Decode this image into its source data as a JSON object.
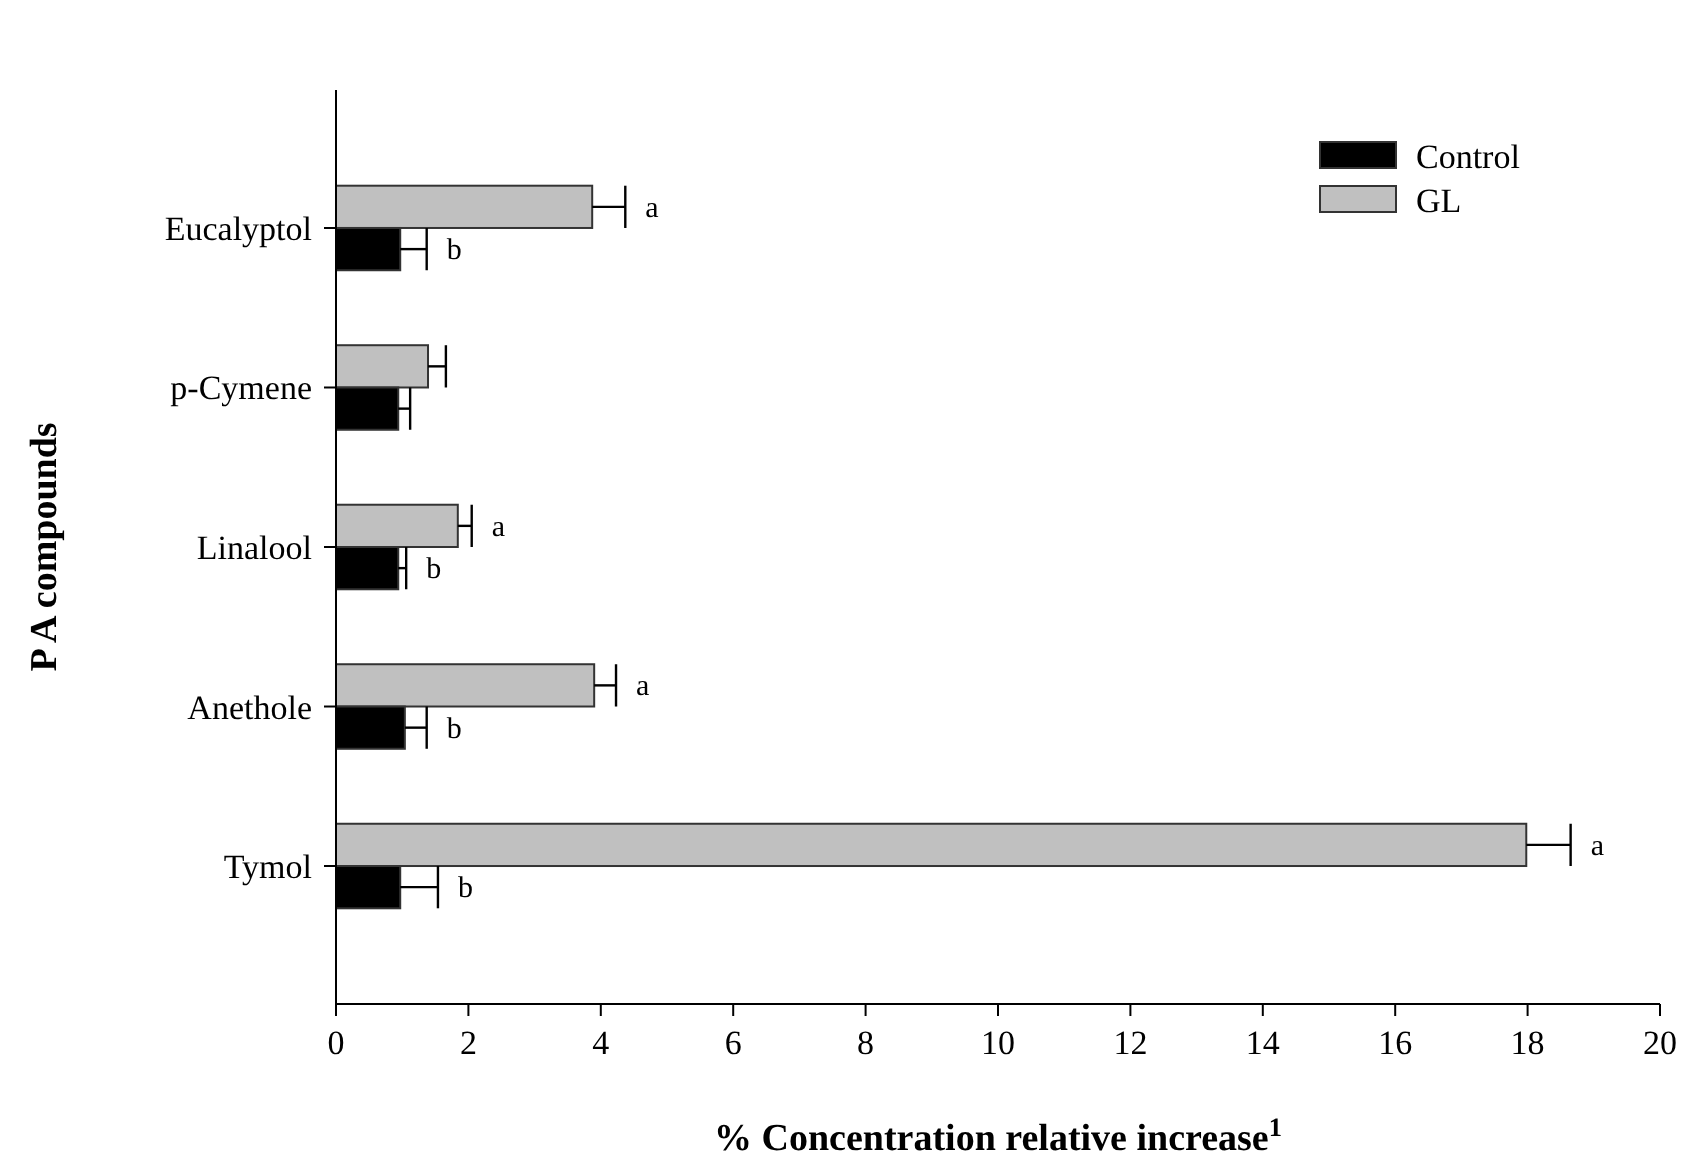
{
  "chart_data": {
    "type": "bar",
    "orientation": "horizontal",
    "xlabel": "% Concentration relative increase$^{1}$",
    "ylabel": "P A compounds",
    "categories": [
      "Eucalyptol",
      "p-Cymene",
      "Linalool",
      "Anethole",
      "Tymol"
    ],
    "series": [
      {
        "name": "GL",
        "color": "#c0c0c0",
        "values": [
          3.87,
          1.39,
          1.84,
          3.9,
          17.98
        ],
        "errors": [
          0.5,
          0.27,
          0.21,
          0.33,
          0.67
        ],
        "value_labels": [
          "a",
          null,
          "a",
          "a",
          "a"
        ]
      },
      {
        "name": "Control",
        "color": "#000000",
        "values": [
          0.97,
          0.94,
          0.94,
          1.04,
          0.97
        ],
        "errors": [
          0.4,
          0.18,
          0.12,
          0.33,
          0.57
        ],
        "value_labels": [
          "b",
          null,
          "b",
          "b",
          "b"
        ]
      }
    ],
    "xlim": [
      0,
      20
    ],
    "xticks": [
      0,
      2,
      4,
      6,
      8,
      10,
      12,
      14,
      16,
      18,
      20
    ],
    "legend": "top right",
    "grid": false
  }
}
